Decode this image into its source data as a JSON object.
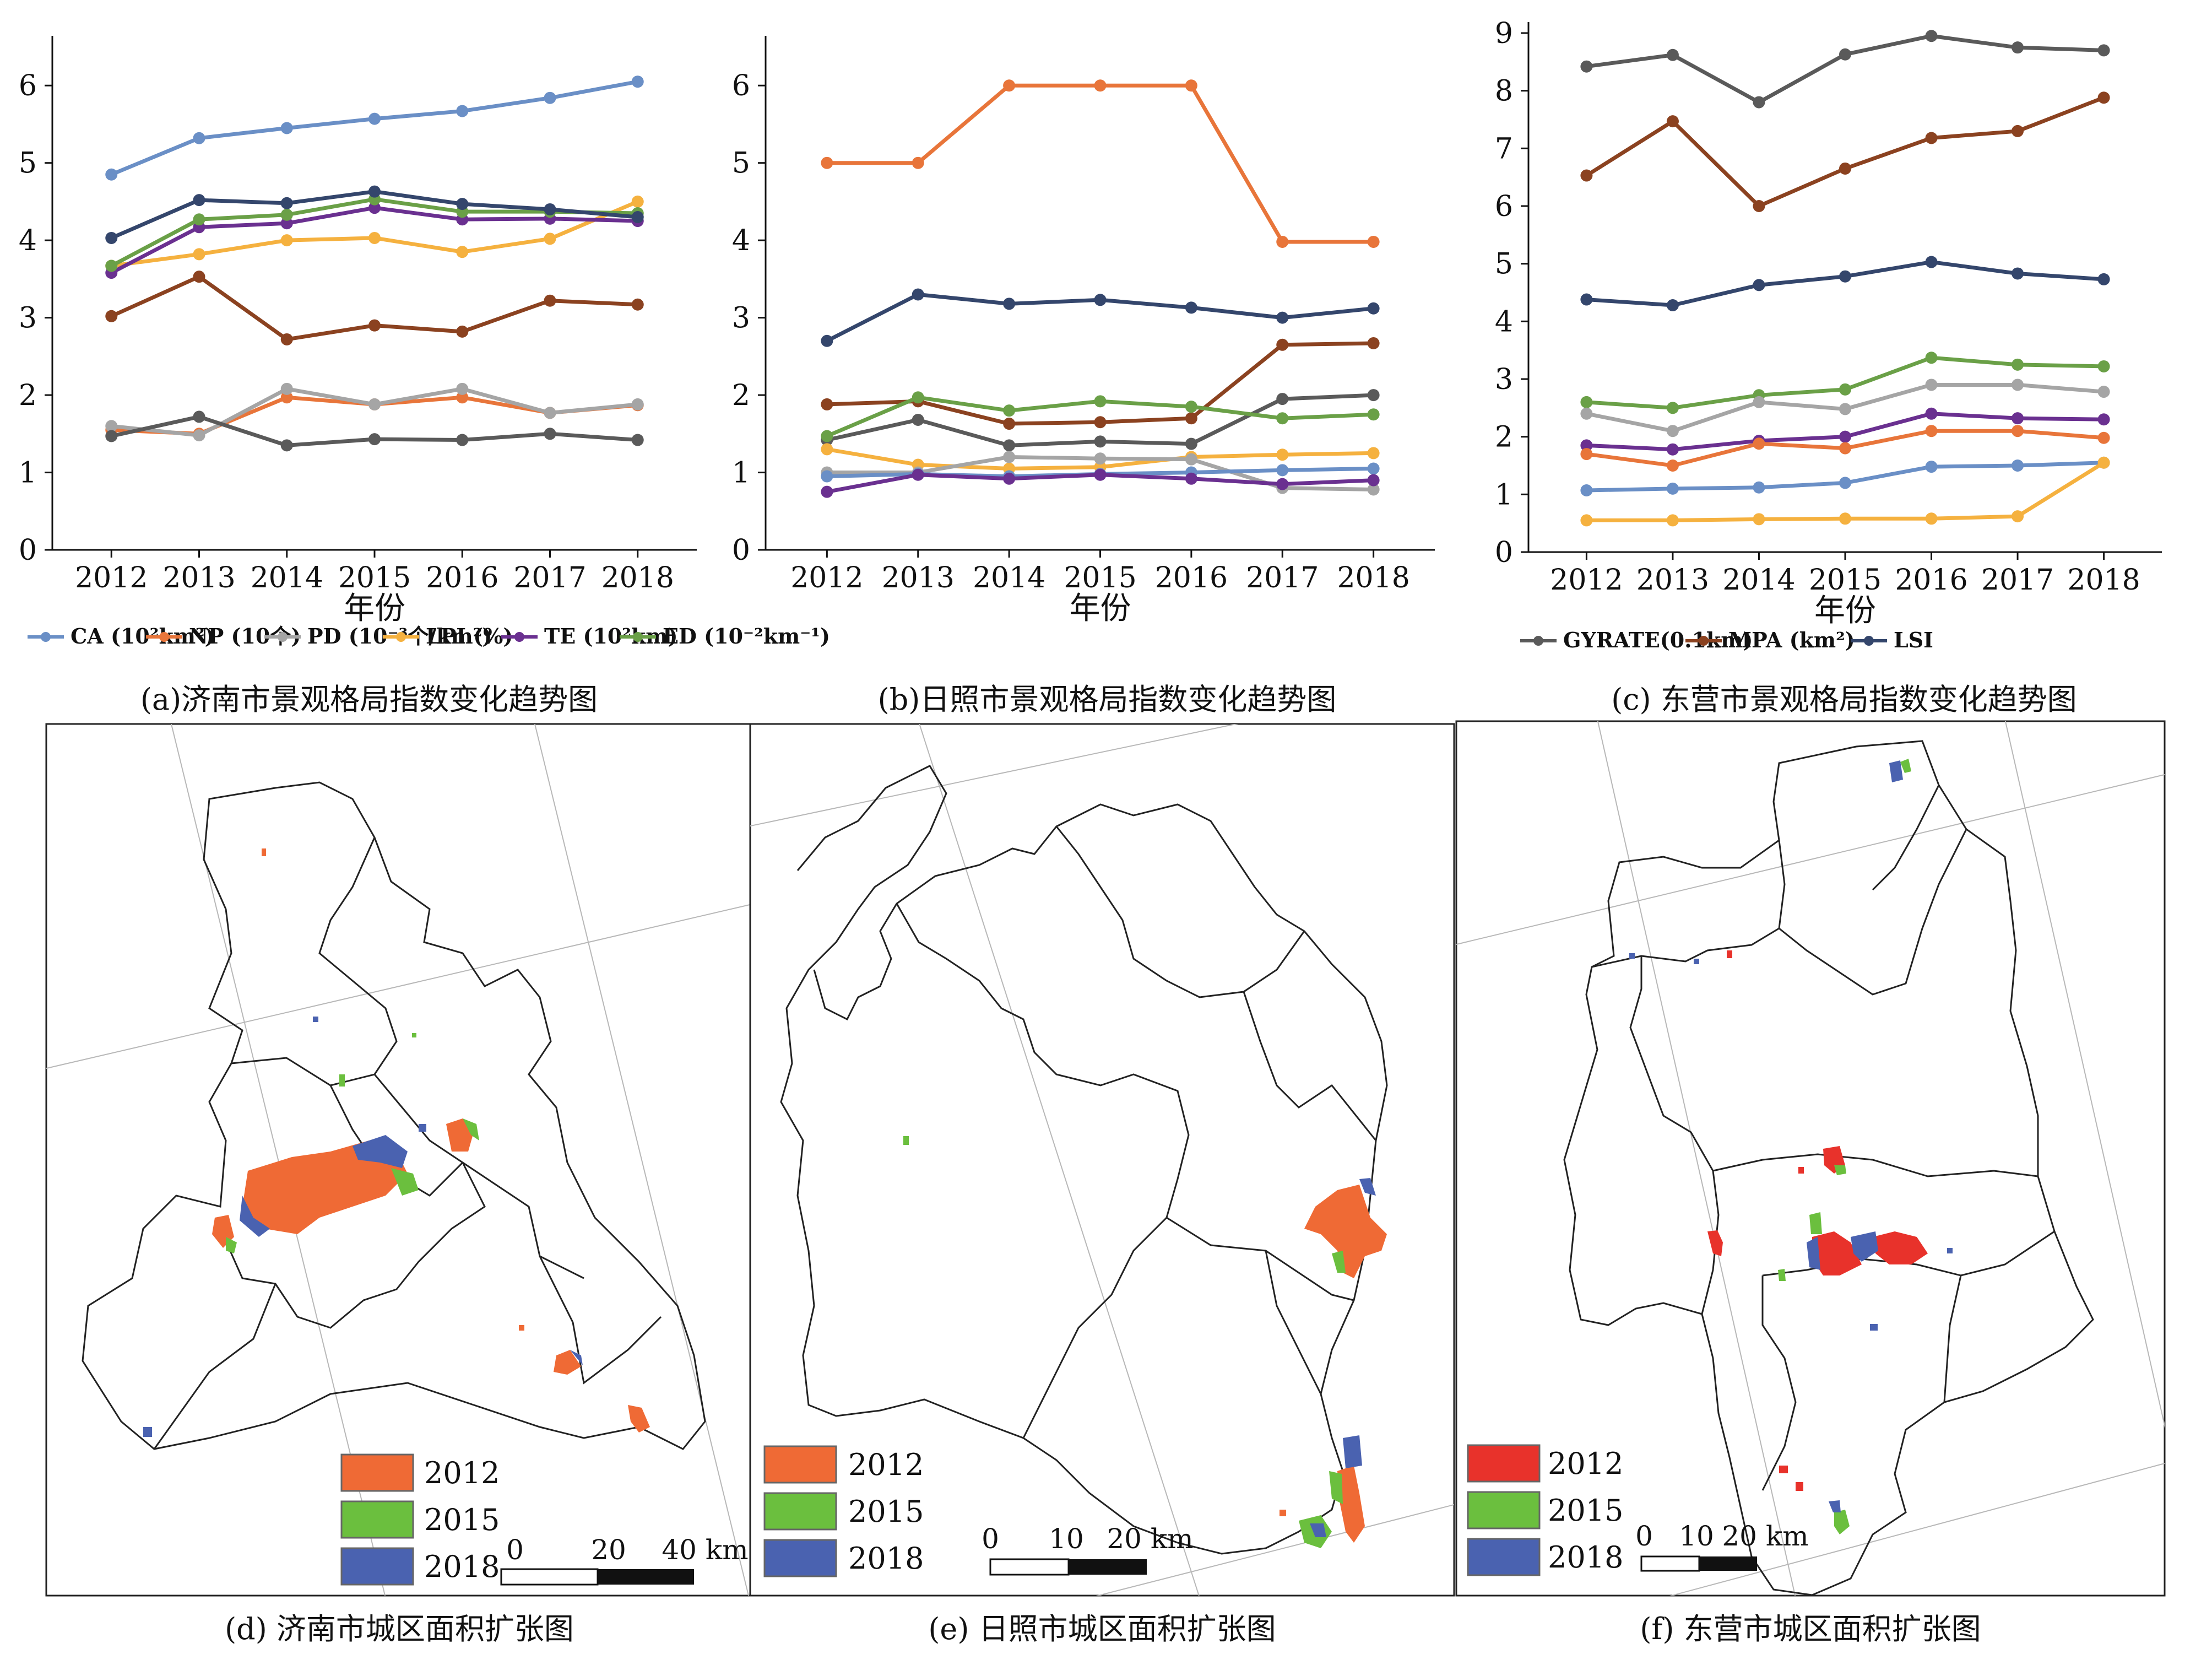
{
  "chart_data": [
    {
      "type": "line",
      "id": "a",
      "title": "(a)济南市景观格局指数变化趋势图",
      "xlabel": "年份",
      "ylabel": "",
      "x": [
        "2012",
        "2013",
        "2014",
        "2015",
        "2016",
        "2017",
        "2018"
      ],
      "ylim": [
        0,
        6.5
      ],
      "yticks": [
        "0",
        "1",
        "2",
        "3",
        "4",
        "5",
        "6"
      ],
      "series": [
        {
          "name": "CA (10²km²)",
          "color": "#6a8fc6",
          "values": [
            4.85,
            5.32,
            5.45,
            5.57,
            5.67,
            5.84,
            6.05
          ]
        },
        {
          "name": "NP (10个)",
          "color": "#e8753a",
          "values": [
            1.55,
            1.5,
            1.97,
            1.88,
            1.97,
            1.77,
            1.87
          ]
        },
        {
          "name": "PD (10⁻³个/km²)",
          "color": "#a5a5a5",
          "values": [
            1.6,
            1.48,
            2.08,
            1.88,
            2.08,
            1.77,
            1.88
          ]
        },
        {
          "name": "LPI (%)",
          "color": "#f5b13f",
          "values": [
            3.67,
            3.82,
            4.0,
            4.03,
            3.85,
            4.02,
            4.5
          ]
        },
        {
          "name": "TE (10²km)",
          "color": "#6a3090",
          "values": [
            3.58,
            4.17,
            4.22,
            4.42,
            4.27,
            4.28,
            4.25
          ]
        },
        {
          "name": "ED (10⁻²km⁻¹)",
          "color": "#6aa047",
          "values": [
            3.67,
            4.27,
            4.33,
            4.53,
            4.37,
            4.37,
            4.35
          ]
        },
        {
          "name": "",
          "color": "#8b4220",
          "values": [
            3.02,
            3.53,
            2.72,
            2.9,
            2.82,
            3.22,
            3.17
          ]
        },
        {
          "name": "",
          "color": "#5a5a5a",
          "values": [
            1.47,
            1.72,
            1.35,
            1.43,
            1.42,
            1.5,
            1.42
          ]
        },
        {
          "name": "",
          "color": "#34466c",
          "values": [
            4.03,
            4.52,
            4.48,
            4.63,
            4.47,
            4.4,
            4.3
          ]
        }
      ]
    },
    {
      "type": "line",
      "id": "b",
      "title": "(b)日照市景观格局指数变化趋势图",
      "xlabel": "年份",
      "ylabel": "",
      "x": [
        "2012",
        "2013",
        "2014",
        "2015",
        "2016",
        "2017",
        "2018"
      ],
      "ylim": [
        0,
        6.5
      ],
      "yticks": [
        "0",
        "1",
        "2",
        "3",
        "4",
        "5",
        "6"
      ],
      "series": [
        {
          "name": "",
          "color": "#e8753a",
          "values": [
            5.0,
            5.0,
            6.0,
            6.0,
            6.0,
            3.98,
            3.98
          ]
        },
        {
          "name": "",
          "color": "#34466c",
          "values": [
            2.7,
            3.3,
            3.18,
            3.23,
            3.13,
            3.0,
            3.12
          ]
        },
        {
          "name": "",
          "color": "#8b4220",
          "values": [
            1.88,
            1.92,
            1.63,
            1.65,
            1.7,
            2.65,
            2.67
          ]
        },
        {
          "name": "",
          "color": "#5a5a5a",
          "values": [
            1.42,
            1.68,
            1.35,
            1.4,
            1.37,
            1.95,
            2.0
          ]
        },
        {
          "name": "",
          "color": "#6aa047",
          "values": [
            1.47,
            1.97,
            1.8,
            1.92,
            1.85,
            1.7,
            1.75
          ]
        },
        {
          "name": "",
          "color": "#f5b13f",
          "values": [
            1.3,
            1.1,
            1.05,
            1.07,
            1.2,
            1.23,
            1.25
          ]
        },
        {
          "name": "",
          "color": "#a5a5a5",
          "values": [
            1.0,
            1.0,
            1.2,
            1.18,
            1.17,
            0.8,
            0.78
          ]
        },
        {
          "name": "",
          "color": "#6a8fc6",
          "values": [
            0.95,
            0.98,
            0.95,
            0.98,
            1.0,
            1.03,
            1.05
          ]
        },
        {
          "name": "",
          "color": "#6a3090",
          "values": [
            0.75,
            0.97,
            0.92,
            0.97,
            0.92,
            0.85,
            0.9
          ]
        }
      ]
    },
    {
      "type": "line",
      "id": "c",
      "title": "(c) 东营市景观格局指数变化趋势图",
      "xlabel": "年份",
      "ylabel": "",
      "x": [
        "2012",
        "2013",
        "2014",
        "2015",
        "2016",
        "2017",
        "2018"
      ],
      "ylim": [
        0,
        9
      ],
      "yticks": [
        "0",
        "1",
        "2",
        "3",
        "4",
        "5",
        "6",
        "7",
        "8",
        "9"
      ],
      "series": [
        {
          "name": "GYRATE(0.1km)",
          "color": "#5a5a5a",
          "values": [
            8.42,
            8.62,
            7.8,
            8.63,
            8.95,
            8.75,
            8.7
          ]
        },
        {
          "name": "MPA (km²)",
          "color": "#8b4220",
          "values": [
            6.53,
            7.47,
            6.0,
            6.65,
            7.18,
            7.3,
            7.88
          ]
        },
        {
          "name": "LSI",
          "color": "#34466c",
          "values": [
            4.38,
            4.28,
            4.63,
            4.78,
            5.03,
            4.83,
            4.73
          ]
        },
        {
          "name": "",
          "color": "#6aa047",
          "values": [
            2.6,
            2.5,
            2.72,
            2.82,
            3.37,
            3.25,
            3.22
          ]
        },
        {
          "name": "",
          "color": "#a5a5a5",
          "values": [
            2.4,
            2.1,
            2.6,
            2.48,
            2.9,
            2.9,
            2.78
          ]
        },
        {
          "name": "",
          "color": "#6a3090",
          "values": [
            1.85,
            1.78,
            1.93,
            2.0,
            2.4,
            2.32,
            2.3
          ]
        },
        {
          "name": "",
          "color": "#e8753a",
          "values": [
            1.7,
            1.5,
            1.88,
            1.8,
            2.1,
            2.1,
            1.98
          ]
        },
        {
          "name": "",
          "color": "#6a8fc6",
          "values": [
            1.07,
            1.1,
            1.12,
            1.2,
            1.48,
            1.5,
            1.55
          ]
        },
        {
          "name": "",
          "color": "#f5b13f",
          "values": [
            0.55,
            0.55,
            0.57,
            0.58,
            0.58,
            0.62,
            1.55
          ]
        }
      ]
    }
  ],
  "maps": [
    {
      "id": "d",
      "caption": "(d) 济南市城区面积扩张图",
      "scale_labels": [
        "0",
        "20",
        "40 km"
      ]
    },
    {
      "id": "e",
      "caption": "(e) 日照市城区面积扩张图",
      "scale_labels": [
        "0",
        "10",
        "20 km"
      ]
    },
    {
      "id": "f",
      "caption": "(f) 东营市城区面积扩张图",
      "scale_labels": [
        "0",
        "10",
        "20 km"
      ]
    }
  ],
  "map_legend": [
    {
      "year": "2012",
      "color": "#ef6a35",
      "color_f": "#e8322b"
    },
    {
      "year": "2015",
      "color": "#6bbf3e"
    },
    {
      "year": "2018",
      "color": "#4a62b0"
    }
  ]
}
